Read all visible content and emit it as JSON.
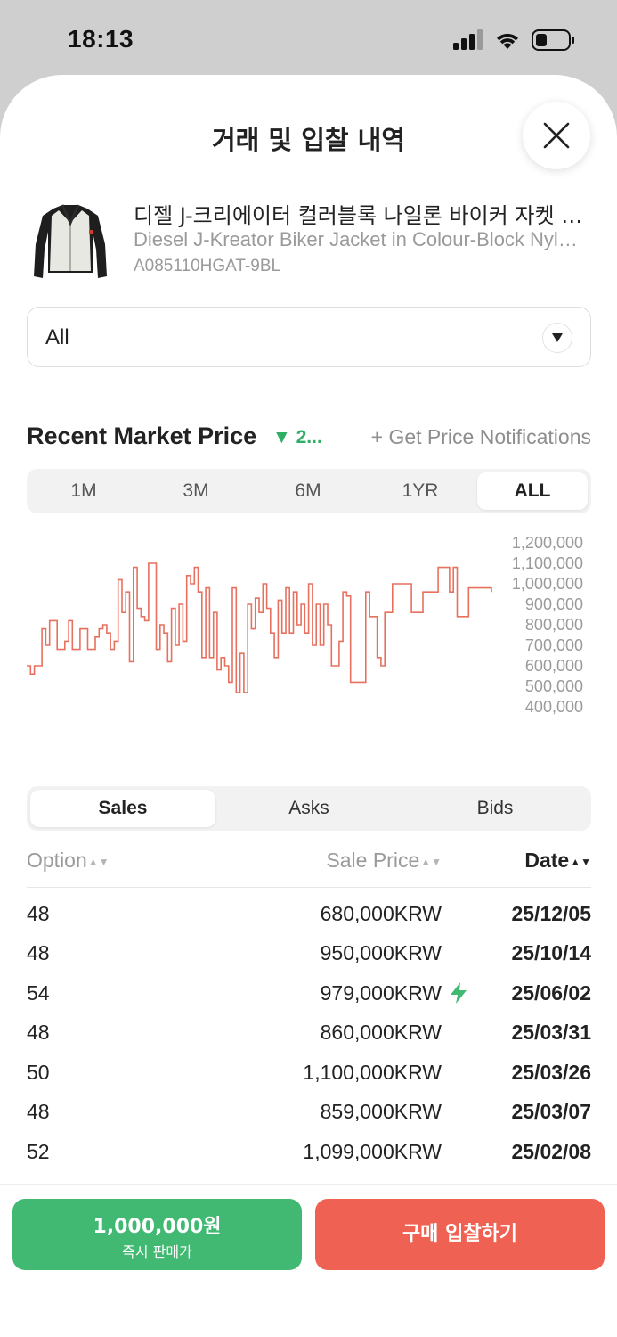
{
  "status_bar": {
    "time": "18:13"
  },
  "sheet": {
    "title": "거래 및 입찰 내역"
  },
  "product": {
    "name_kr": "디젤 J-크리에이터 컬러블록 나일론 바이커 자켓 블랙",
    "name_en": "Diesel J-Kreator Biker Jacket in Colour-Block Nylon Black",
    "code": "A085110HGAT-9BL"
  },
  "option_select": {
    "value": "All"
  },
  "market": {
    "title": "Recent Market Price",
    "change": "▼ 2...",
    "notify_label": "+ Get Price Notifications"
  },
  "period_tabs": [
    "1M",
    "3M",
    "6M",
    "1YR",
    "ALL"
  ],
  "active_period": "ALL",
  "chart_data": {
    "type": "line",
    "y_tick_labels": [
      "1,200,000",
      "1,100,000",
      "1,000,000",
      "900,000",
      "800,000",
      "700,000",
      "600,000",
      "500,000",
      "400,000"
    ],
    "ylim": [
      400000,
      1200000
    ],
    "line_color": "#e8705f",
    "values": [
      600000,
      560000,
      600000,
      600000,
      780000,
      700000,
      820000,
      820000,
      680000,
      680000,
      720000,
      820000,
      680000,
      680000,
      780000,
      780000,
      680000,
      680000,
      740000,
      780000,
      800000,
      760000,
      680000,
      720000,
      1020000,
      860000,
      960000,
      620000,
      1080000,
      880000,
      840000,
      820000,
      1100000,
      1100000,
      680000,
      800000,
      760000,
      620000,
      880000,
      700000,
      900000,
      720000,
      1040000,
      1000000,
      1080000,
      960000,
      640000,
      980000,
      640000,
      860000,
      580000,
      640000,
      600000,
      520000,
      980000,
      470000,
      660000,
      470000,
      900000,
      780000,
      930000,
      860000,
      1000000,
      880000,
      760000,
      640000,
      920000,
      760000,
      980000,
      760000,
      960000,
      800000,
      900000,
      760000,
      1000000,
      700000,
      900000,
      700000,
      900000,
      800000,
      600000,
      600000,
      720000,
      960000,
      940000,
      520000,
      520000,
      520000,
      520000,
      960000,
      840000,
      840000,
      640000,
      600000,
      860000,
      860000,
      1000000,
      1000000,
      1000000,
      1000000,
      1000000,
      860000,
      860000,
      860000,
      960000,
      960000,
      960000,
      960000,
      1080000,
      1080000,
      1080000,
      960000,
      1080000,
      840000,
      840000,
      840000,
      980000,
      980000,
      980000,
      980000,
      980000,
      980000,
      960000
    ]
  },
  "list_tabs": [
    "Sales",
    "Asks",
    "Bids"
  ],
  "active_list_tab": "Sales",
  "table": {
    "headers": {
      "option": "Option",
      "price": "Sale Price",
      "date": "Date"
    },
    "rows": [
      {
        "option": "48",
        "price": "680,000KRW",
        "quick": false,
        "date": "25/12/05"
      },
      {
        "option": "48",
        "price": "950,000KRW",
        "quick": false,
        "date": "25/10/14"
      },
      {
        "option": "54",
        "price": "979,000KRW",
        "quick": true,
        "date": "25/06/02"
      },
      {
        "option": "48",
        "price": "860,000KRW",
        "quick": false,
        "date": "25/03/31"
      },
      {
        "option": "50",
        "price": "1,100,000KRW",
        "quick": false,
        "date": "25/03/26"
      },
      {
        "option": "48",
        "price": "859,000KRW",
        "quick": false,
        "date": "25/03/07"
      },
      {
        "option": "52",
        "price": "1,099,000KRW",
        "quick": false,
        "date": "25/02/08"
      }
    ]
  },
  "bottom": {
    "sell_price": "1,000,000원",
    "sell_label": "즉시 판매가",
    "bid_label": "구매 입찰하기"
  },
  "colors": {
    "accent_green": "#41b972",
    "accent_red": "#ef6253",
    "chart_line": "#e8705f"
  }
}
